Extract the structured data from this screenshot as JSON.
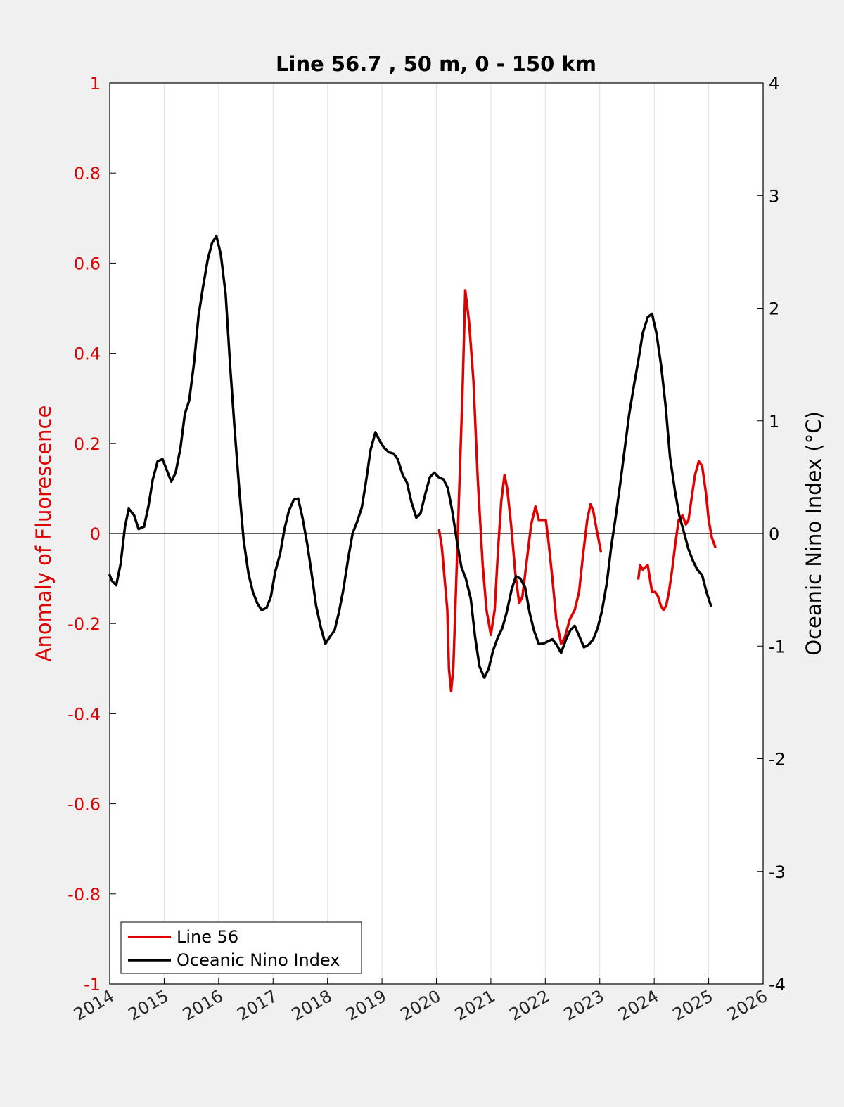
{
  "chart_data": {
    "type": "line",
    "title": "Line 56.7 , 50 m, 0 - 150 km",
    "ylabel_left": "Anomaly of Fluorescence",
    "ylabel_right": "Oceanic Nino Index (°C)",
    "xlim": [
      2014,
      2026
    ],
    "ylim_left": [
      -1,
      1
    ],
    "ylim_right": [
      -4,
      4
    ],
    "x_ticks": [
      "2014",
      "2015",
      "2016",
      "2017",
      "2018",
      "2019",
      "2020",
      "2021",
      "2022",
      "2023",
      "2024",
      "2025",
      "2026"
    ],
    "y_ticks_left": [
      "1",
      "0.8",
      "0.6",
      "0.4",
      "0.2",
      "0",
      "-0.2",
      "-0.4",
      "-0.6",
      "-0.8",
      "-1"
    ],
    "y_ticks_right": [
      "4",
      "3",
      "2",
      "1",
      "0",
      "-1",
      "-2",
      "-3",
      "-4"
    ],
    "grid": "vertical",
    "zero_line": true,
    "legend": {
      "position": "bottom-left"
    },
    "colors": {
      "left_axis": "#e00000",
      "line56": "#e00000",
      "oni": "#000000"
    },
    "series": [
      {
        "name": "Line 56",
        "axis": "left",
        "segments": [
          [
            [
              2020.05,
              0.007
            ],
            [
              2020.1,
              -0.03
            ],
            [
              2020.15,
              -0.1
            ],
            [
              2020.2,
              -0.17
            ],
            [
              2020.23,
              -0.3
            ],
            [
              2020.27,
              -0.35
            ],
            [
              2020.31,
              -0.3
            ],
            [
              2020.36,
              -0.12
            ],
            [
              2020.42,
              0.1
            ],
            [
              2020.48,
              0.32
            ],
            [
              2020.53,
              0.54
            ],
            [
              2020.6,
              0.47
            ],
            [
              2020.68,
              0.34
            ],
            [
              2020.76,
              0.12
            ],
            [
              2020.85,
              -0.07
            ],
            [
              2020.92,
              -0.17
            ],
            [
              2021.0,
              -0.225
            ],
            [
              2021.07,
              -0.17
            ],
            [
              2021.13,
              -0.04
            ],
            [
              2021.19,
              0.07
            ],
            [
              2021.25,
              0.13
            ],
            [
              2021.3,
              0.1
            ],
            [
              2021.37,
              0.02
            ],
            [
              2021.45,
              -0.09
            ],
            [
              2021.52,
              -0.155
            ],
            [
              2021.58,
              -0.14
            ],
            [
              2021.66,
              -0.06
            ],
            [
              2021.74,
              0.02
            ],
            [
              2021.82,
              0.06
            ],
            [
              2021.88,
              0.03
            ],
            [
              2021.94,
              0.03
            ],
            [
              2022.01,
              0.03
            ],
            [
              2022.06,
              -0.02
            ],
            [
              2022.13,
              -0.1
            ],
            [
              2022.2,
              -0.19
            ],
            [
              2022.29,
              -0.245
            ],
            [
              2022.36,
              -0.23
            ],
            [
              2022.45,
              -0.19
            ],
            [
              2022.54,
              -0.17
            ],
            [
              2022.62,
              -0.13
            ],
            [
              2022.69,
              -0.05
            ],
            [
              2022.77,
              0.03
            ],
            [
              2022.83,
              0.065
            ],
            [
              2022.88,
              0.05
            ],
            [
              2022.94,
              0.01
            ],
            [
              2023.02,
              -0.04
            ]
          ],
          [
            [
              2023.71,
              -0.1
            ],
            [
              2023.74,
              -0.07
            ],
            [
              2023.79,
              -0.08
            ],
            [
              2023.88,
              -0.07
            ],
            [
              2023.92,
              -0.1
            ],
            [
              2023.96,
              -0.13
            ],
            [
              2024.02,
              -0.13
            ],
            [
              2024.07,
              -0.14
            ],
            [
              2024.12,
              -0.16
            ],
            [
              2024.17,
              -0.17
            ],
            [
              2024.22,
              -0.16
            ],
            [
              2024.27,
              -0.13
            ],
            [
              2024.33,
              -0.08
            ],
            [
              2024.39,
              -0.02
            ],
            [
              2024.45,
              0.03
            ],
            [
              2024.52,
              0.04
            ],
            [
              2024.58,
              0.02
            ],
            [
              2024.63,
              0.03
            ],
            [
              2024.7,
              0.09
            ],
            [
              2024.75,
              0.13
            ],
            [
              2024.82,
              0.16
            ],
            [
              2024.88,
              0.15
            ],
            [
              2024.95,
              0.09
            ],
            [
              2025.0,
              0.03
            ],
            [
              2025.06,
              -0.01
            ],
            [
              2025.12,
              -0.03
            ]
          ]
        ]
      },
      {
        "name": "Oceanic Nino Index",
        "axis": "right",
        "segments": [
          [
            [
              2014.0,
              -0.37
            ],
            [
              2014.04,
              -0.42
            ],
            [
              2014.12,
              -0.46
            ],
            [
              2014.2,
              -0.27
            ],
            [
              2014.28,
              0.06
            ],
            [
              2014.35,
              0.22
            ],
            [
              2014.45,
              0.16
            ],
            [
              2014.53,
              0.04
            ],
            [
              2014.63,
              0.06
            ],
            [
              2014.71,
              0.24
            ],
            [
              2014.79,
              0.48
            ],
            [
              2014.88,
              0.64
            ],
            [
              2014.97,
              0.66
            ],
            [
              2015.05,
              0.56
            ],
            [
              2015.13,
              0.46
            ],
            [
              2015.21,
              0.54
            ],
            [
              2015.3,
              0.76
            ],
            [
              2015.38,
              1.06
            ],
            [
              2015.46,
              1.18
            ],
            [
              2015.55,
              1.52
            ],
            [
              2015.63,
              1.93
            ],
            [
              2015.71,
              2.18
            ],
            [
              2015.8,
              2.43
            ],
            [
              2015.88,
              2.58
            ],
            [
              2015.96,
              2.64
            ],
            [
              2016.04,
              2.48
            ],
            [
              2016.13,
              2.12
            ],
            [
              2016.21,
              1.5
            ],
            [
              2016.29,
              0.95
            ],
            [
              2016.38,
              0.38
            ],
            [
              2016.46,
              -0.06
            ],
            [
              2016.55,
              -0.36
            ],
            [
              2016.63,
              -0.52
            ],
            [
              2016.71,
              -0.62
            ],
            [
              2016.79,
              -0.68
            ],
            [
              2016.88,
              -0.66
            ],
            [
              2016.96,
              -0.56
            ],
            [
              2017.04,
              -0.34
            ],
            [
              2017.13,
              -0.18
            ],
            [
              2017.21,
              0.04
            ],
            [
              2017.29,
              0.2
            ],
            [
              2017.38,
              0.3
            ],
            [
              2017.46,
              0.31
            ],
            [
              2017.54,
              0.14
            ],
            [
              2017.63,
              -0.1
            ],
            [
              2017.71,
              -0.36
            ],
            [
              2017.79,
              -0.64
            ],
            [
              2017.88,
              -0.84
            ],
            [
              2017.96,
              -0.98
            ],
            [
              2018.04,
              -0.92
            ],
            [
              2018.13,
              -0.86
            ],
            [
              2018.21,
              -0.7
            ],
            [
              2018.29,
              -0.5
            ],
            [
              2018.38,
              -0.22
            ],
            [
              2018.46,
              0.0
            ],
            [
              2018.54,
              0.1
            ],
            [
              2018.63,
              0.23
            ],
            [
              2018.71,
              0.47
            ],
            [
              2018.79,
              0.74
            ],
            [
              2018.88,
              0.9
            ],
            [
              2018.96,
              0.82
            ],
            [
              2019.04,
              0.76
            ],
            [
              2019.13,
              0.72
            ],
            [
              2019.21,
              0.71
            ],
            [
              2019.29,
              0.66
            ],
            [
              2019.38,
              0.52
            ],
            [
              2019.46,
              0.45
            ],
            [
              2019.54,
              0.28
            ],
            [
              2019.63,
              0.14
            ],
            [
              2019.71,
              0.18
            ],
            [
              2019.79,
              0.34
            ],
            [
              2019.88,
              0.5
            ],
            [
              2019.96,
              0.54
            ],
            [
              2020.04,
              0.5
            ],
            [
              2020.13,
              0.48
            ],
            [
              2020.21,
              0.4
            ],
            [
              2020.29,
              0.2
            ],
            [
              2020.38,
              -0.08
            ],
            [
              2020.46,
              -0.3
            ],
            [
              2020.54,
              -0.4
            ],
            [
              2020.63,
              -0.58
            ],
            [
              2020.71,
              -0.92
            ],
            [
              2020.79,
              -1.18
            ],
            [
              2020.88,
              -1.28
            ],
            [
              2020.96,
              -1.2
            ],
            [
              2021.04,
              -1.04
            ],
            [
              2021.13,
              -0.92
            ],
            [
              2021.21,
              -0.84
            ],
            [
              2021.29,
              -0.7
            ],
            [
              2021.38,
              -0.5
            ],
            [
              2021.46,
              -0.38
            ],
            [
              2021.54,
              -0.4
            ],
            [
              2021.63,
              -0.48
            ],
            [
              2021.71,
              -0.7
            ],
            [
              2021.79,
              -0.86
            ],
            [
              2021.88,
              -0.98
            ],
            [
              2021.96,
              -0.98
            ],
            [
              2022.04,
              -0.96
            ],
            [
              2022.13,
              -0.94
            ],
            [
              2022.21,
              -0.99
            ],
            [
              2022.29,
              -1.06
            ],
            [
              2022.38,
              -0.94
            ],
            [
              2022.46,
              -0.86
            ],
            [
              2022.54,
              -0.82
            ],
            [
              2022.63,
              -0.92
            ],
            [
              2022.71,
              -1.01
            ],
            [
              2022.79,
              -0.99
            ],
            [
              2022.88,
              -0.94
            ],
            [
              2022.96,
              -0.84
            ],
            [
              2023.04,
              -0.69
            ],
            [
              2023.13,
              -0.44
            ],
            [
              2023.21,
              -0.12
            ],
            [
              2023.29,
              0.14
            ],
            [
              2023.38,
              0.46
            ],
            [
              2023.46,
              0.76
            ],
            [
              2023.54,
              1.06
            ],
            [
              2023.63,
              1.32
            ],
            [
              2023.71,
              1.54
            ],
            [
              2023.79,
              1.78
            ],
            [
              2023.88,
              1.92
            ],
            [
              2023.96,
              1.95
            ],
            [
              2024.04,
              1.78
            ],
            [
              2024.13,
              1.48
            ],
            [
              2024.21,
              1.13
            ],
            [
              2024.29,
              0.68
            ],
            [
              2024.38,
              0.38
            ],
            [
              2024.46,
              0.16
            ],
            [
              2024.54,
              0.02
            ],
            [
              2024.63,
              -0.14
            ],
            [
              2024.71,
              -0.24
            ],
            [
              2024.79,
              -0.32
            ],
            [
              2024.88,
              -0.37
            ],
            [
              2024.96,
              -0.52
            ],
            [
              2025.04,
              -0.64
            ]
          ]
        ]
      }
    ]
  }
}
